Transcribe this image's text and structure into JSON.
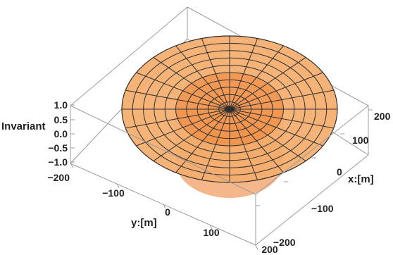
{
  "chart_data": {
    "type": "surface3d",
    "title": "",
    "xlabel": "x:[m]",
    "ylabel": "y:[m]",
    "zlabel": "Invariant",
    "x_ticks": [
      "200",
      "100",
      "0",
      "−100",
      "−200"
    ],
    "y_ticks": [
      "−200",
      "−100",
      "0",
      "100",
      "200"
    ],
    "z_ticks": [
      "1.0",
      "0.5",
      "0.0",
      "−0.5",
      "−1.0"
    ],
    "xlim": [
      -200,
      200
    ],
    "ylim": [
      -200,
      200
    ],
    "zlim": [
      -1,
      1
    ],
    "surface": {
      "shape": "disk",
      "outer_radius": 200,
      "inner_radius": 0,
      "radial_rings": 10,
      "angular_sectors": 24
    },
    "inner_cylinder": {
      "radius": 100,
      "height_range": [
        -1,
        1
      ]
    },
    "colors": {
      "surface_fill": "#f4ac6d",
      "surface_mesh": "#2f2f2f",
      "inner_cylinder": "#ed7b2a",
      "box_edges": "#9b9b9b",
      "axis_text": "#222222",
      "background": "#ffffff"
    },
    "grid": false,
    "box": true
  }
}
